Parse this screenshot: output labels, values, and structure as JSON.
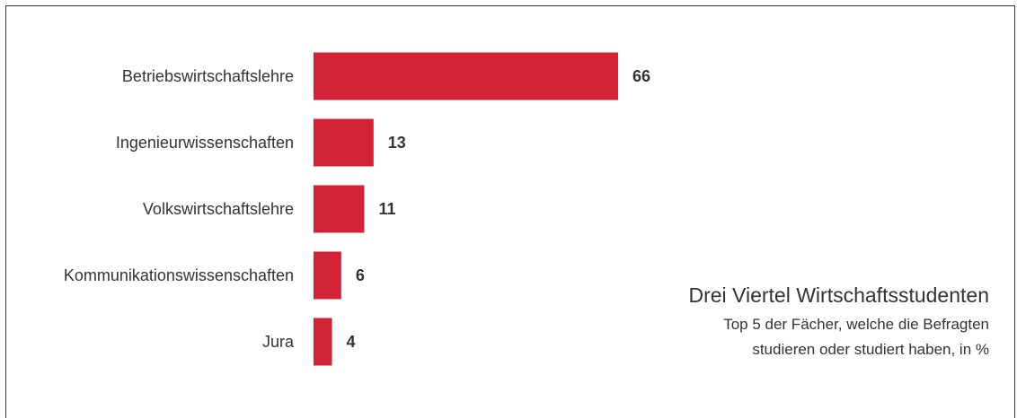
{
  "chart_data": {
    "type": "bar",
    "orientation": "horizontal",
    "title": "Drei Viertel Wirtschaftsstudenten",
    "subtitle_lines": [
      "Top 5 der Fächer, welche die Befragten",
      "studieren oder studiert haben, in %"
    ],
    "categories": [
      "Betriebswirtschaftslehre",
      "Ingenieurwissenschaften",
      "Volkswirtschaftslehre",
      "Kommunikationswissenschaften",
      "Jura"
    ],
    "values": [
      66,
      13,
      11,
      6,
      4
    ],
    "value_labels": [
      "66",
      "13",
      "11",
      "6",
      "4"
    ],
    "xlim": [
      0,
      66
    ],
    "grid": false,
    "legend": "none",
    "bar_color": "#d22235",
    "text_color": "#333333"
  }
}
